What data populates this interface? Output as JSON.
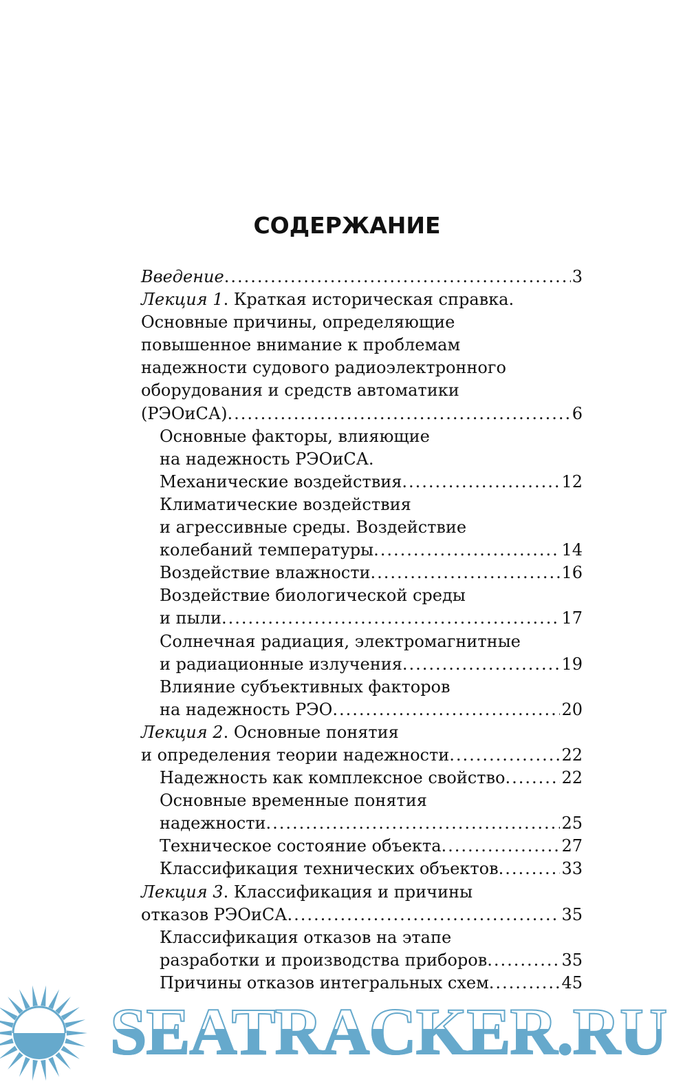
{
  "title": "СОДЕРЖАНИЕ",
  "entries": [
    {
      "lecture": "",
      "italic": "Введение",
      "lines": [
        ""
      ],
      "page": "3",
      "indent": false
    },
    {
      "lecture": "Лекция 1",
      "lines": [
        ". Краткая историческая справка.",
        "Основные причины, определяющие",
        "повышенное внимание к проблемам",
        "надежности судового радиоэлектронного",
        "оборудования и средств автоматики",
        "(РЭОиСА)"
      ],
      "page": "6",
      "indent": false
    },
    {
      "lines": [
        "Основные факторы, влияющие",
        "на надежность РЭОиСА.",
        "Механические воздействия"
      ],
      "page": "12",
      "indent": true
    },
    {
      "lines": [
        "Климатические воздействия",
        "и агрессивные среды. Воздействие",
        "колебаний температуры"
      ],
      "page": "14",
      "indent": true
    },
    {
      "lines": [
        "Воздействие влажности"
      ],
      "page": "16",
      "indent": true
    },
    {
      "lines": [
        "Воздействие биологической среды",
        "и пыли"
      ],
      "page": "17",
      "indent": true
    },
    {
      "lines": [
        "Солнечная радиация, электромагнитные",
        "и радиационные излучения"
      ],
      "page": "19",
      "indent": true
    },
    {
      "lines": [
        "Влияние субъективных факторов",
        "на надежность РЭО"
      ],
      "page": "20",
      "indent": true
    },
    {
      "lecture": "Лекция 2",
      "lines": [
        ". Основные понятия",
        "и определения теории надежности"
      ],
      "page": "22",
      "indent": false
    },
    {
      "lines": [
        "Надежность как комплексное свойство"
      ],
      "page": "22",
      "indent": true
    },
    {
      "lines": [
        "Основные временные понятия",
        "надежности"
      ],
      "page": "25",
      "indent": true
    },
    {
      "lines": [
        "Техническое состояние объекта"
      ],
      "page": "27",
      "indent": true
    },
    {
      "lines": [
        "Классификация технических объектов"
      ],
      "page": "33",
      "indent": true
    },
    {
      "lecture": "Лекция 3",
      "lines": [
        ". Классификация и причины",
        "отказов РЭОиСА"
      ],
      "page": "35",
      "indent": false
    },
    {
      "lines": [
        "Классификация отказов на этапе",
        "разработки и производства приборов"
      ],
      "page": "35",
      "indent": true
    },
    {
      "lines": [
        "Причины отказов интегральных схем"
      ],
      "page": "45",
      "indent": true
    }
  ],
  "watermark": {
    "text": "SEATRACKER.RU",
    "color": "#66a9cc",
    "icon": "sun-icon"
  }
}
